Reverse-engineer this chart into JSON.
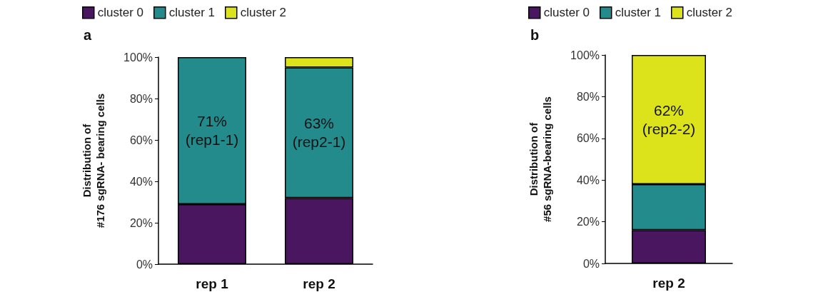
{
  "chart_data": [
    {
      "type": "bar",
      "title": "a",
      "ylabel": "Distribution of\n#176 sgRNA- bearing cells",
      "categories": [
        "rep 1",
        "rep 2"
      ],
      "stacked": true,
      "legend": "top",
      "grid": false,
      "ylim": [
        0,
        100
      ],
      "yticks": [
        {
          "value": 0,
          "label": "0%"
        },
        {
          "value": 20,
          "label": "20%"
        },
        {
          "value": 40,
          "label": "40%"
        },
        {
          "value": 60,
          "label": "60%"
        },
        {
          "value": 80,
          "label": "80%"
        },
        {
          "value": 100,
          "label": "100%"
        }
      ],
      "series": [
        {
          "name": "cluster 0",
          "color": "#4a1660",
          "values": [
            29,
            32
          ]
        },
        {
          "name": "cluster 1",
          "color": "#238b8c",
          "values": [
            71,
            63
          ],
          "value_labels": [
            "71%\n(rep1-1)",
            "63%\n(rep2-1)"
          ]
        },
        {
          "name": "cluster 2",
          "color": "#dde31a",
          "values": [
            null,
            5
          ]
        }
      ]
    },
    {
      "type": "bar",
      "title": "b",
      "ylabel": "Distribution of\n#56 sgRNA-bearing cells",
      "categories": [
        "rep 2"
      ],
      "stacked": true,
      "legend": "top",
      "grid": false,
      "ylim": [
        0,
        100
      ],
      "yticks": [
        {
          "value": 0,
          "label": "0%"
        },
        {
          "value": 20,
          "label": "20%"
        },
        {
          "value": 40,
          "label": "40%"
        },
        {
          "value": 60,
          "label": "60%"
        },
        {
          "value": 80,
          "label": "80%"
        },
        {
          "value": 100,
          "label": "100%"
        }
      ],
      "series": [
        {
          "name": "cluster 0",
          "color": "#4a1660",
          "values": [
            16
          ]
        },
        {
          "name": "cluster 1",
          "color": "#238b8c",
          "values": [
            22
          ]
        },
        {
          "name": "cluster 2",
          "color": "#dde31a",
          "values": [
            62
          ],
          "value_labels": [
            "62%\n(rep2-2)"
          ]
        }
      ]
    }
  ]
}
